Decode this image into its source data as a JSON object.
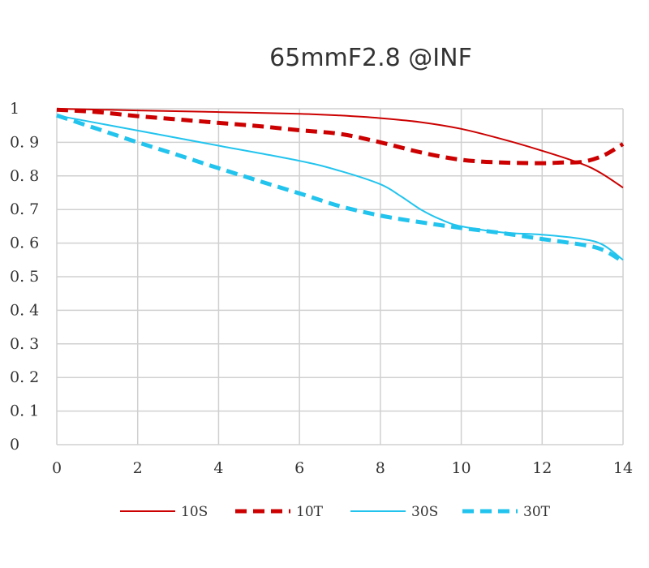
{
  "chart_data": {
    "type": "line",
    "title": "65mmF2.8 @INF",
    "xlabel": "",
    "ylabel": "",
    "xlim": [
      0,
      14
    ],
    "ylim": [
      0,
      1
    ],
    "x_ticks": [
      0,
      2,
      4,
      6,
      8,
      10,
      12,
      14
    ],
    "y_ticks": [
      0,
      0.1,
      0.2,
      0.3,
      0.4,
      0.5,
      0.6,
      0.7,
      0.8,
      0.9,
      1
    ],
    "y_tick_labels": [
      "0",
      "0. 1",
      "0. 2",
      "0. 3",
      "0. 4",
      "0. 5",
      "0. 6",
      "0. 7",
      "0. 8",
      "0. 9",
      "1"
    ],
    "grid": true,
    "legend_position": "bottom",
    "series": [
      {
        "name": "10S",
        "color": "#cc0000",
        "dashed": false,
        "x": [
          0,
          2,
          4,
          6,
          7,
          8,
          9,
          10,
          11,
          12,
          13,
          13.5,
          14
        ],
        "y": [
          1.0,
          0.995,
          0.99,
          0.985,
          0.98,
          0.972,
          0.96,
          0.94,
          0.91,
          0.875,
          0.835,
          0.805,
          0.765
        ]
      },
      {
        "name": "10T",
        "color": "#cc0000",
        "dashed": true,
        "x": [
          0,
          1,
          2,
          3,
          4,
          5,
          6,
          7,
          8,
          9,
          10,
          11,
          12,
          12.5,
          13,
          13.5,
          14
        ],
        "y": [
          0.997,
          0.99,
          0.978,
          0.968,
          0.958,
          0.948,
          0.936,
          0.925,
          0.9,
          0.87,
          0.848,
          0.84,
          0.838,
          0.84,
          0.842,
          0.86,
          0.895
        ]
      },
      {
        "name": "30S",
        "color": "#22c4ee",
        "dashed": false,
        "x": [
          0,
          2,
          4,
          6,
          7,
          8,
          8.5,
          9,
          9.5,
          10,
          11,
          12,
          13,
          13.5,
          14
        ],
        "y": [
          0.98,
          0.935,
          0.89,
          0.845,
          0.815,
          0.775,
          0.74,
          0.7,
          0.67,
          0.65,
          0.632,
          0.625,
          0.612,
          0.595,
          0.55
        ]
      },
      {
        "name": "30T",
        "color": "#22c4ee",
        "dashed": true,
        "x": [
          0,
          1,
          2,
          3,
          4,
          5,
          6,
          7,
          8,
          9,
          10,
          11,
          12,
          13,
          13.5,
          14
        ],
        "y": [
          0.98,
          0.94,
          0.9,
          0.862,
          0.823,
          0.785,
          0.748,
          0.71,
          0.682,
          0.662,
          0.645,
          0.63,
          0.612,
          0.595,
          0.58,
          0.545
        ]
      }
    ]
  }
}
